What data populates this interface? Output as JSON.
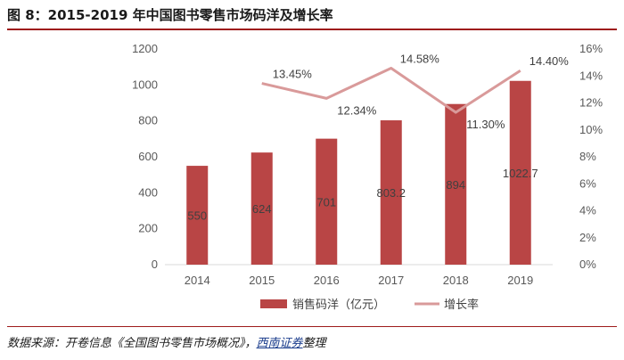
{
  "figure": {
    "title": "图 8：2015-2019 年中国图书零售市场码洋及增长率",
    "source_prefix": "数据来源：开卷信息《全国图书零售市场概况》，",
    "source_brand": "西南证券",
    "source_suffix": "整理"
  },
  "colors": {
    "bar": "#b94545",
    "line": "#d99a9a",
    "rule": "#9e1c1c",
    "axis_text": "#595959",
    "grid": "#d9d9d9"
  },
  "chart_data": {
    "type": "bar",
    "categories": [
      "2014",
      "2015",
      "2016",
      "2017",
      "2018",
      "2019"
    ],
    "series": [
      {
        "name": "销售码洋（亿元）",
        "type": "bar",
        "axis": "left",
        "values": [
          550,
          624,
          701,
          803.2,
          894,
          1022.7
        ],
        "labels": [
          "550",
          "624",
          "701",
          "803.2",
          "894",
          "1022.7"
        ]
      },
      {
        "name": "增长率",
        "type": "line",
        "axis": "right",
        "values": [
          null,
          13.45,
          12.34,
          14.58,
          11.3,
          14.4
        ],
        "labels": [
          "",
          "13.45%",
          "12.34%",
          "14.58%",
          "11.30%",
          "14.40%"
        ]
      }
    ],
    "y_left": {
      "lim": [
        0,
        1200
      ],
      "ticks": [
        "0",
        "200",
        "400",
        "600",
        "800",
        "1000",
        "1200"
      ]
    },
    "y_right": {
      "lim": [
        0,
        16
      ],
      "ticks": [
        "0%",
        "2%",
        "4%",
        "6%",
        "8%",
        "10%",
        "12%",
        "14%",
        "16%"
      ]
    },
    "grid": false,
    "legend_position": "bottom"
  }
}
